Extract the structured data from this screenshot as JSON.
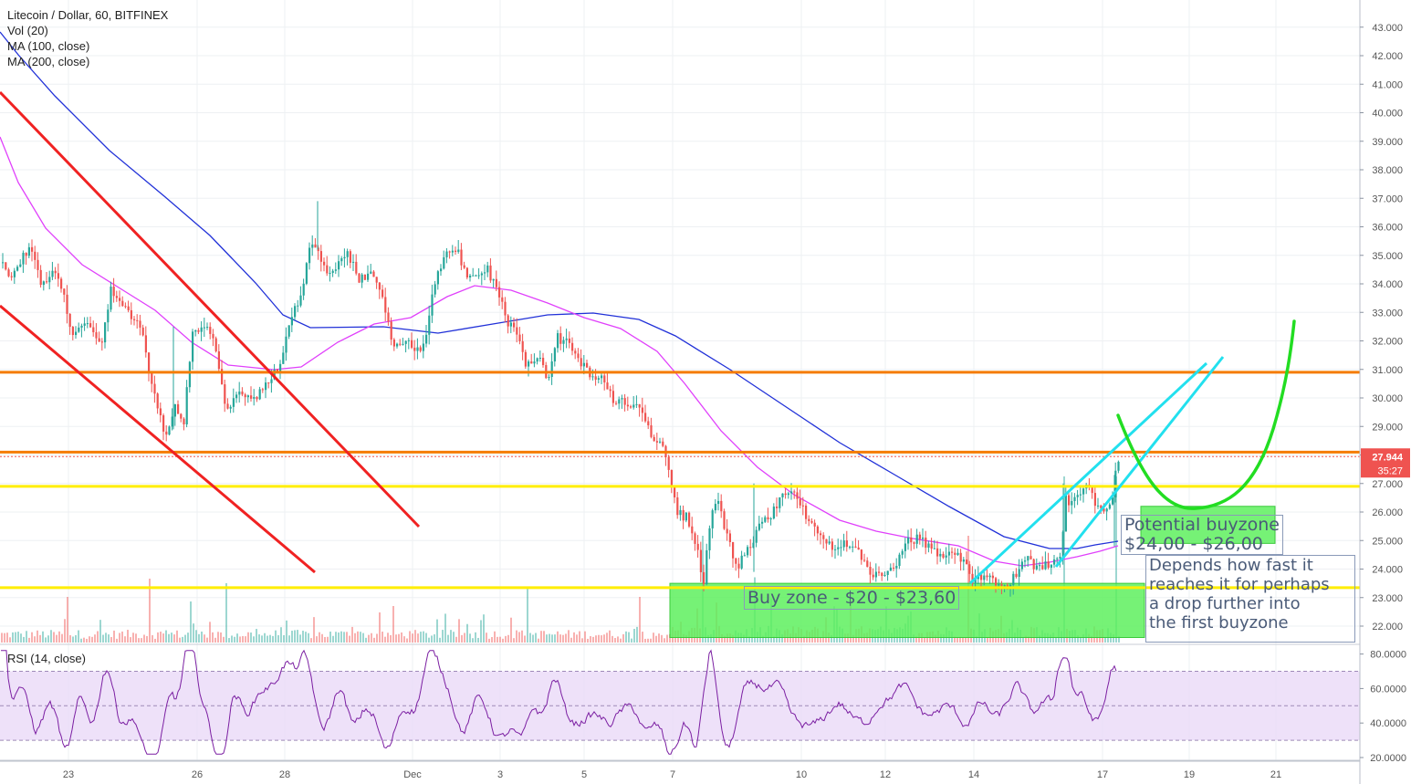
{
  "legend": {
    "title": "Litecoin / Dollar, 60, BITFINEX",
    "vol": "Vol (20)",
    "ma100": "MA (100, close)",
    "ma200": "MA (200, close)"
  },
  "rsi_legend": "RSI (14, close)",
  "price_badge": {
    "value": "27.944",
    "countdown": "35:27",
    "color": "#ef5350"
  },
  "annotations": {
    "buy_zone": "Buy zone - $20 - $23,60",
    "potential_buyzone": "Potential buyzone\n$24,00 - $26,00",
    "depends": "Depends how fast it\nreaches it for perhaps\na drop further into\nthe first buyzone"
  },
  "colors": {
    "up": "#26a69a",
    "down": "#ef5350",
    "ma100": "#e040fb",
    "ma200": "#2131d8",
    "orange": "#f57c00",
    "yellow": "#ffee00",
    "red_channel": "#f02222",
    "cyan": "#22e0ee",
    "green_curve": "#22dd22",
    "zone_fill": "#5ef05e",
    "rsi": "#7b1fa2",
    "rsi_band": "#ead9f7"
  },
  "chart_data": [
    {
      "type": "candlestick",
      "title": "Litecoin / Dollar, 60, BITFINEX",
      "y_axis_side": "right",
      "ylim": [
        21.5,
        43.2
      ],
      "y_ticks": [
        "22.000",
        "23.000",
        "24.000",
        "25.000",
        "26.000",
        "27.000",
        "28.000",
        "29.000",
        "30.000",
        "31.000",
        "32.000",
        "33.000",
        "34.000",
        "35.000",
        "36.000",
        "37.000",
        "38.000",
        "39.000",
        "40.000",
        "41.000",
        "42.000",
        "43.000"
      ],
      "x_ticks": [
        "23",
        "26",
        "28",
        "Dec",
        "3",
        "5",
        "7",
        "10",
        "12",
        "14",
        "17",
        "19",
        "21"
      ],
      "last_price": 27.944,
      "series": [
        {
          "name": "MA (100, close)",
          "kind": "line"
        },
        {
          "name": "MA (200, close)",
          "kind": "line"
        },
        {
          "name": "Vol (20)",
          "kind": "volume"
        }
      ],
      "horizontal_levels": [
        {
          "price": 30.9,
          "color": "orange"
        },
        {
          "price": 28.1,
          "color": "orange"
        },
        {
          "price": 26.9,
          "color": "yellow"
        },
        {
          "price": 23.35,
          "color": "yellow"
        }
      ],
      "zones": [
        {
          "label": "Buy zone - $20 - $23,60",
          "price_range": [
            21.6,
            23.5
          ]
        },
        {
          "label": "Potential buyzone $24,00 - $26,00",
          "price_range": [
            24.9,
            26.2
          ]
        }
      ]
    },
    {
      "type": "line",
      "title": "RSI (14, close)",
      "y_axis_side": "right",
      "ylim": [
        17,
        84
      ],
      "y_ticks": [
        "20.0000",
        "40.0000",
        "60.0000",
        "80.0000"
      ],
      "band": [
        30,
        70
      ]
    }
  ]
}
